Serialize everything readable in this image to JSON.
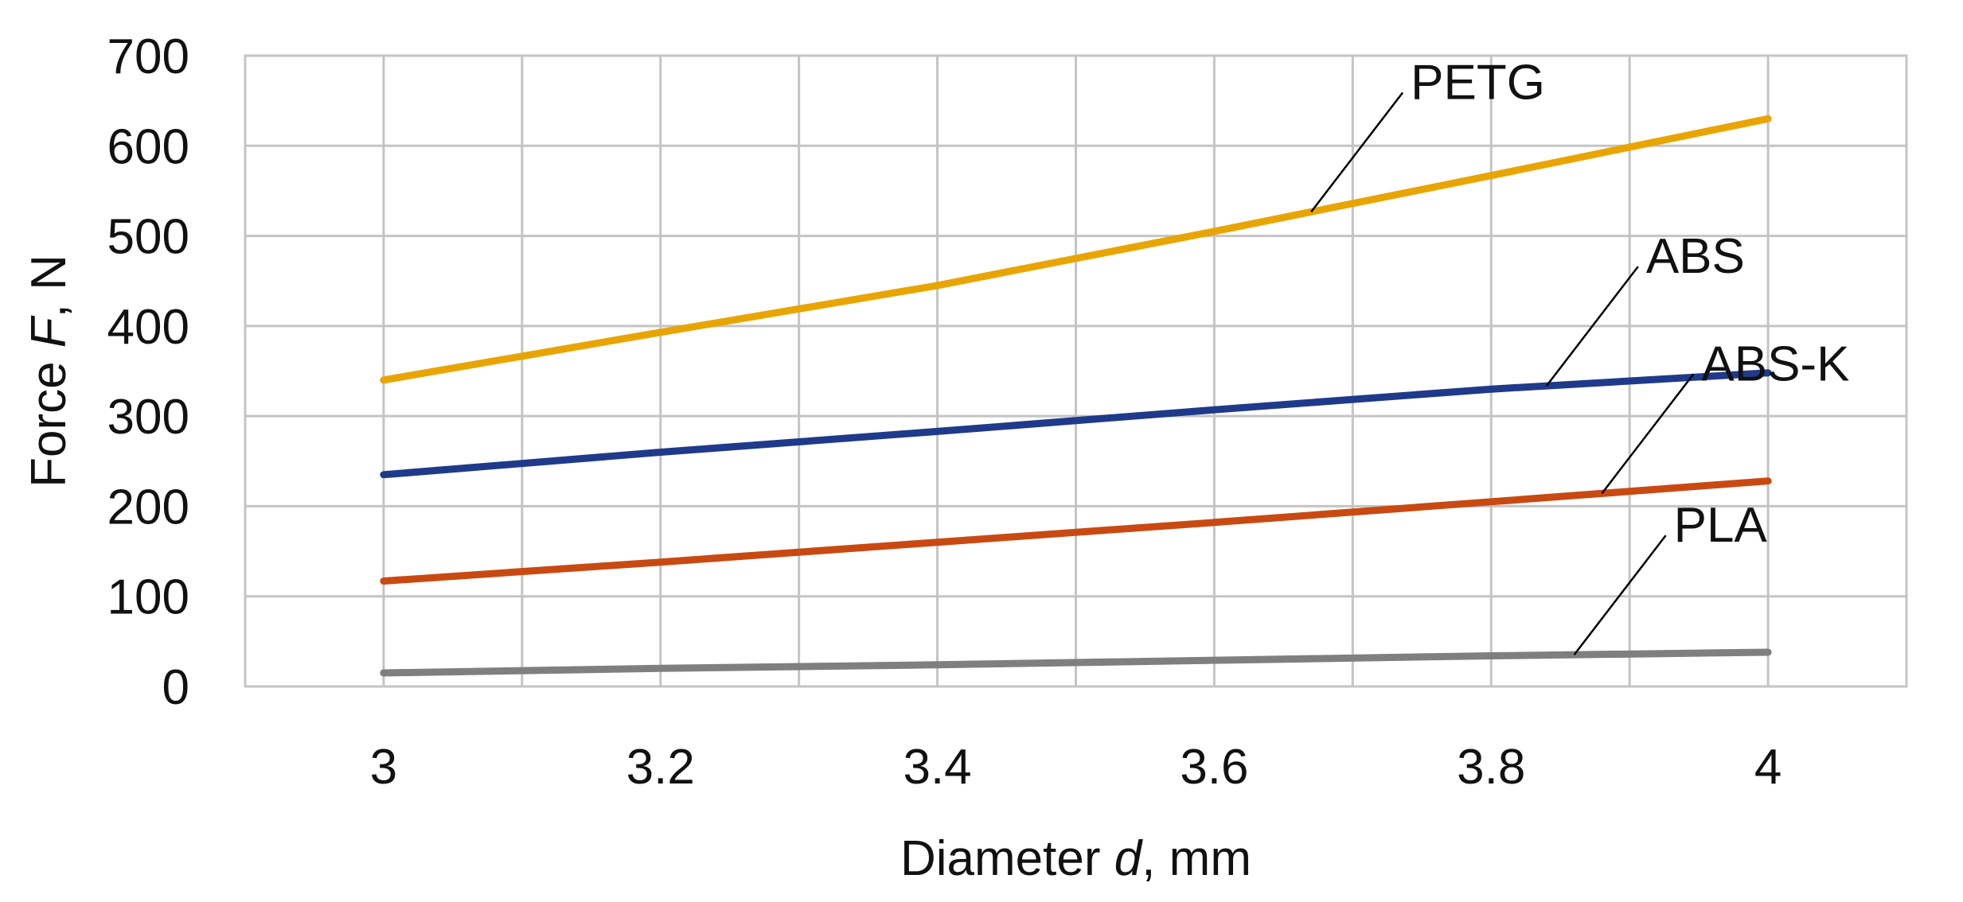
{
  "chart_data": {
    "type": "line",
    "xlabel": {
      "prefix": "Diameter ",
      "var": "d",
      "suffix": ", mm"
    },
    "ylabel": {
      "prefix": "Force ",
      "var": "F",
      "suffix": ", N"
    },
    "x": [
      3,
      3.2,
      3.4,
      3.6,
      3.8,
      4
    ],
    "x_tick_labels": [
      "3",
      "3.2",
      "3.4",
      "3.6",
      "3.8",
      "4"
    ],
    "xlim": [
      2.9,
      4.1
    ],
    "ylim": [
      0,
      700
    ],
    "y_ticks": [
      0,
      100,
      200,
      300,
      400,
      500,
      600,
      700
    ],
    "y_tick_labels": [
      "0",
      "100",
      "200",
      "300",
      "400",
      "500",
      "600",
      "700"
    ],
    "grid": true,
    "legend": "none (series labeled inline with leader lines)",
    "series": [
      {
        "name": "PETG",
        "color": "#E8A500",
        "values": [
          340,
          393,
          445,
          505,
          567,
          630
        ]
      },
      {
        "name": "ABS",
        "color": "#1F3A8A",
        "values": [
          235,
          260,
          283,
          307,
          330,
          348
        ]
      },
      {
        "name": "ABS-K",
        "color": "#C84A12",
        "values": [
          117,
          138,
          160,
          182,
          205,
          228
        ]
      },
      {
        "name": "PLA",
        "color": "#7F7F7F",
        "values": [
          15,
          20,
          24,
          29,
          34,
          38
        ]
      }
    ],
    "annotations": [
      {
        "series": "PETG",
        "text": "PETG",
        "at_x": 3.67
      },
      {
        "series": "ABS",
        "text": "ABS",
        "at_x": 3.84
      },
      {
        "series": "ABS-K",
        "text": "ABS-K",
        "at_x": 3.88
      },
      {
        "series": "PLA",
        "text": "PLA",
        "at_x": 3.86
      }
    ]
  }
}
